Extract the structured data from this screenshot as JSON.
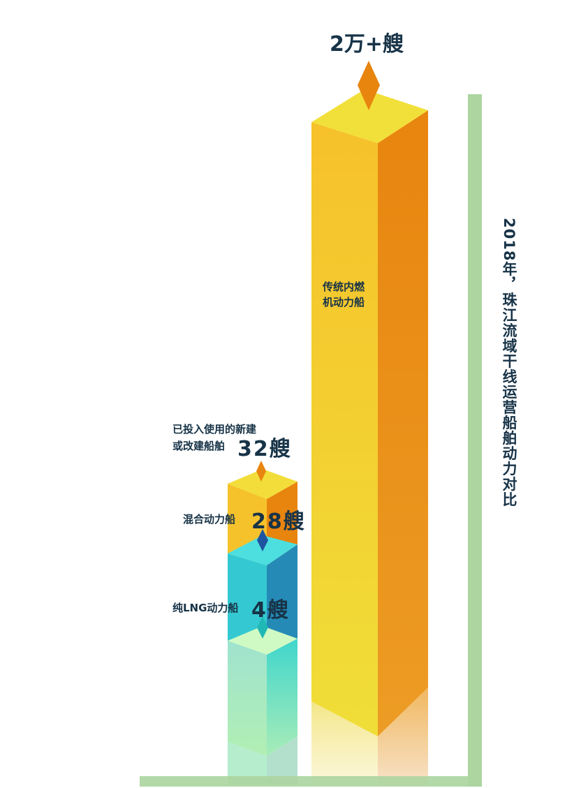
{
  "chart_data": {
    "type": "bar",
    "title": "2018年，珠江流域干线运营船舶动力对比",
    "stacked_group": {
      "label_line1": "已投入使用的新建",
      "label_line2": "或改建船舶",
      "total": 32,
      "total_label": "32艘",
      "series": [
        {
          "name": "纯LNG动力船",
          "value": 4,
          "value_label": "4艘",
          "color": "#3ecfd0"
        },
        {
          "name": "混合动力船",
          "value": 28,
          "value_label": "28艘",
          "color": "#f5c52a"
        }
      ]
    },
    "big_bar": {
      "name_line1": "传统内燃",
      "name_line2": "机动力船",
      "value": 20000,
      "value_label": "2万+艘",
      "color": "#f3c82b"
    },
    "axis_color": "#acd5a0"
  }
}
